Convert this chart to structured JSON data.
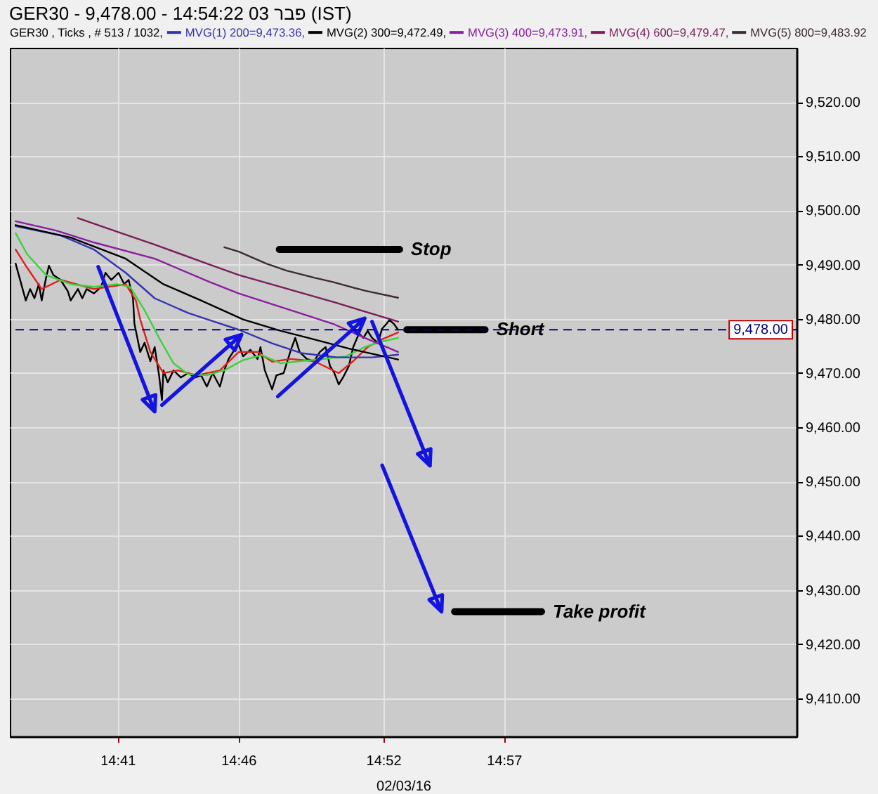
{
  "chart_data": {
    "type": "line",
    "title": "GER30 - 9,478.00 - 14:54:22 03 פבר (IST)",
    "subtitle": "GER30 , Ticks , # 513 / 1032,",
    "xlabel": "02/03/16",
    "xlim": [
      14.609,
      15.152
    ],
    "xticks": [
      {
        "value": 14.6833,
        "label": "14:41"
      },
      {
        "value": 14.7667,
        "label": "14:46"
      },
      {
        "value": 14.8667,
        "label": "14:52"
      },
      {
        "value": 14.95,
        "label": "14:57"
      }
    ],
    "ylim": [
      9403,
      9530
    ],
    "yticks": [
      {
        "value": 9410,
        "label": "9,410.00"
      },
      {
        "value": 9420,
        "label": "9,420.00"
      },
      {
        "value": 9430,
        "label": "9,430.00"
      },
      {
        "value": 9440,
        "label": "9,440.00"
      },
      {
        "value": 9450,
        "label": "9,450.00"
      },
      {
        "value": 9460,
        "label": "9,460.00"
      },
      {
        "value": 9470,
        "label": "9,470.00"
      },
      {
        "value": 9480,
        "label": "9,480.00"
      },
      {
        "value": 9490,
        "label": "9,490.00"
      },
      {
        "value": 9500,
        "label": "9,500.00"
      },
      {
        "value": 9510,
        "label": "9,510.00"
      },
      {
        "value": 9520,
        "label": "9,520.00"
      }
    ],
    "grid": true,
    "legend": "top",
    "ref_lines": [
      {
        "axis": "y",
        "value": 9478,
        "label": "9,478.00",
        "color": "#000080",
        "line_style": "dashed"
      }
    ],
    "series": [
      {
        "color": "#000000",
        "x": [
          14.613,
          14.62,
          14.623,
          14.626,
          14.629,
          14.631,
          14.634,
          14.636,
          14.639,
          14.644,
          14.649,
          14.651,
          14.656,
          14.659,
          14.662,
          14.667,
          14.672,
          14.675,
          14.679,
          14.684,
          14.688,
          14.691,
          14.694,
          14.695,
          14.697,
          14.699,
          14.702,
          14.706,
          14.709,
          14.712,
          14.714,
          14.715,
          14.718,
          14.722,
          14.727,
          14.732,
          14.737,
          14.741,
          14.745,
          14.749,
          14.754,
          14.757,
          14.76,
          14.764,
          14.767,
          14.77,
          14.775,
          14.78,
          14.782,
          14.785,
          14.79,
          14.793,
          14.798,
          14.803,
          14.806,
          14.809,
          14.814,
          14.819,
          14.823,
          14.827,
          14.83,
          14.833,
          14.836,
          14.839,
          14.843,
          14.846,
          14.85,
          14.853,
          14.856,
          14.859,
          14.863,
          14.866,
          14.869,
          14.871,
          14.874,
          14.877
        ],
        "values": [
          9490.2,
          9483.4,
          9485.5,
          9483.8,
          9486.4,
          9483.4,
          9487.6,
          9489.8,
          9488.1,
          9487.2,
          9485.1,
          9483.4,
          9485.5,
          9483.8,
          9485.5,
          9484.7,
          9485.9,
          9488.5,
          9487.2,
          9488.5,
          9486.4,
          9487.2,
          9483.8,
          9479.1,
          9476.5,
          9473.9,
          9475.6,
          9472.2,
          9474.8,
          9469.6,
          9465.0,
          9470.5,
          9468.3,
          9470.5,
          9469.2,
          9470.0,
          9469.2,
          9469.6,
          9467.5,
          9470.0,
          9467.5,
          9470.5,
          9472.6,
          9474.3,
          9475.2,
          9473.1,
          9474.3,
          9472.6,
          9474.8,
          9470.5,
          9467.0,
          9469.6,
          9470.0,
          9474.3,
          9476.5,
          9473.9,
          9472.6,
          9472.2,
          9473.9,
          9474.8,
          9471.3,
          9470.0,
          9467.9,
          9469.2,
          9471.3,
          9474.8,
          9477.3,
          9476.5,
          9477.8,
          9476.5,
          9475.6,
          9478.2,
          9479.1,
          9479.8,
          9479.1,
          9478.0
        ]
      },
      {
        "color": "#e0201c",
        "x": [
          14.613,
          14.621,
          14.631,
          14.644,
          14.667,
          14.689,
          14.696,
          14.699,
          14.706,
          14.715,
          14.725,
          14.738,
          14.754,
          14.767,
          14.78,
          14.79,
          14.803,
          14.819,
          14.836,
          14.846,
          14.856,
          14.864,
          14.877
        ],
        "values": [
          9492.8,
          9489.4,
          9485.5,
          9487.2,
          9485.5,
          9486.4,
          9483.4,
          9479.9,
          9473.9,
          9470.0,
          9470.5,
          9469.6,
          9470.5,
          9473.9,
          9473.9,
          9472.1,
          9472.6,
          9472.2,
          9470.0,
          9472.2,
          9474.8,
          9476.0,
          9477.5
        ]
      },
      {
        "color": "#3cd23c",
        "x": [
          14.613,
          14.621,
          14.634,
          14.651,
          14.667,
          14.683,
          14.692,
          14.702,
          14.712,
          14.722,
          14.732,
          14.745,
          14.757,
          14.77,
          14.783,
          14.796,
          14.806,
          14.825,
          14.841,
          14.854,
          14.864,
          14.877
        ],
        "values": [
          9495.8,
          9491.9,
          9488.1,
          9486.4,
          9485.9,
          9486.4,
          9485.9,
          9481.6,
          9476.5,
          9471.8,
          9469.8,
          9469.6,
          9470.5,
          9472.4,
          9473.3,
          9471.8,
          9472.1,
          9472.6,
          9473.1,
          9474.8,
          9475.7,
          9476.5
        ]
      },
      {
        "name": "MVG(1) 200=9,473.36,",
        "color": "#3434b0",
        "x": [
          14.613,
          14.644,
          14.667,
          14.689,
          14.709,
          14.732,
          14.751,
          14.767,
          14.79,
          14.81,
          14.835,
          14.859,
          14.877
        ],
        "values": [
          9497.1,
          9495.4,
          9492.8,
          9488.5,
          9483.8,
          9481.1,
          9479.4,
          9478.0,
          9475.5,
          9473.7,
          9472.9,
          9472.9,
          9473.4
        ]
      },
      {
        "name": "MVG(2) 300=9,472.49,",
        "color": "#000000",
        "x": [
          14.613,
          14.651,
          14.689,
          14.715,
          14.741,
          14.77,
          14.796,
          14.815,
          14.845,
          14.877
        ],
        "values": [
          9497.3,
          9495.0,
          9491.1,
          9486.4,
          9483.4,
          9479.9,
          9477.8,
          9476.5,
          9474.4,
          9472.5
        ]
      },
      {
        "name": "MVG(3) 400=9,473.91,",
        "color": "#8a1ea0",
        "x": [
          14.613,
          14.641,
          14.667,
          14.709,
          14.747,
          14.767,
          14.796,
          14.832,
          14.854,
          14.877
        ],
        "values": [
          9498.0,
          9496.3,
          9494.1,
          9491.1,
          9486.8,
          9484.7,
          9482.2,
          9479.1,
          9476.5,
          9473.9
        ]
      },
      {
        "name": "MVG(4) 600=9,479.47,",
        "color": "#7a1e5a",
        "x": [
          14.656,
          14.686,
          14.709,
          14.745,
          14.767,
          14.796,
          14.835,
          14.877
        ],
        "values": [
          9498.6,
          9495.8,
          9493.7,
          9490.2,
          9488.1,
          9485.9,
          9482.9,
          9479.5
        ]
      },
      {
        "name": "MVG(5) 800=9,483.92",
        "color": "#3c2a36",
        "x": [
          14.757,
          14.767,
          14.786,
          14.8,
          14.819,
          14.832,
          14.854,
          14.877
        ],
        "values": [
          9493.2,
          9492.4,
          9490.2,
          9488.9,
          9487.6,
          9486.8,
          9485.2,
          9483.9
        ]
      },
      {
        "color": "#1414e0",
        "x": [
          14.67,
          14.709,
          14.7006,
          14.7096,
          14.709
        ],
        "values": [
          9489.6,
          9462.9,
          9465.1,
          9466.0,
          9462.9
        ]
      },
      {
        "color": "#1414e0",
        "x": [
          14.714,
          14.769,
          14.7642,
          14.7578,
          14.769
        ],
        "values": [
          9464.1,
          9477.1,
          9474.2,
          9476.2,
          9477.1
        ]
      },
      {
        "color": "#1414e0",
        "x": [
          14.794,
          14.854,
          14.8493,
          14.8428,
          14.854
        ],
        "values": [
          9465.7,
          9480.1,
          9477.2,
          9479.2,
          9480.1
        ]
      },
      {
        "color": "#1414e0",
        "x": [
          14.859,
          14.899,
          14.8905,
          14.8995,
          14.899
        ],
        "values": [
          9479.5,
          9452.9,
          9455.1,
          9456.0,
          9452.9
        ]
      },
      {
        "color": "#1414e0",
        "x": [
          14.866,
          14.907,
          14.8985,
          14.9075,
          14.907
        ],
        "values": [
          9453.0,
          9426.0,
          9428.2,
          9429.1,
          9426.0
        ]
      },
      {
        "name": "Stop",
        "color": "#000000",
        "x": [
          14.795,
          14.878
        ],
        "values": [
          9492.8,
          9492.8
        ]
      },
      {
        "name": "Short",
        "color": "#000000",
        "x": [
          14.883,
          14.937
        ],
        "values": [
          9478.0,
          9478.0
        ]
      },
      {
        "name": "Take profit",
        "color": "#000000",
        "x": [
          14.916,
          14.976
        ],
        "values": [
          9426.0,
          9426.0
        ]
      }
    ]
  }
}
